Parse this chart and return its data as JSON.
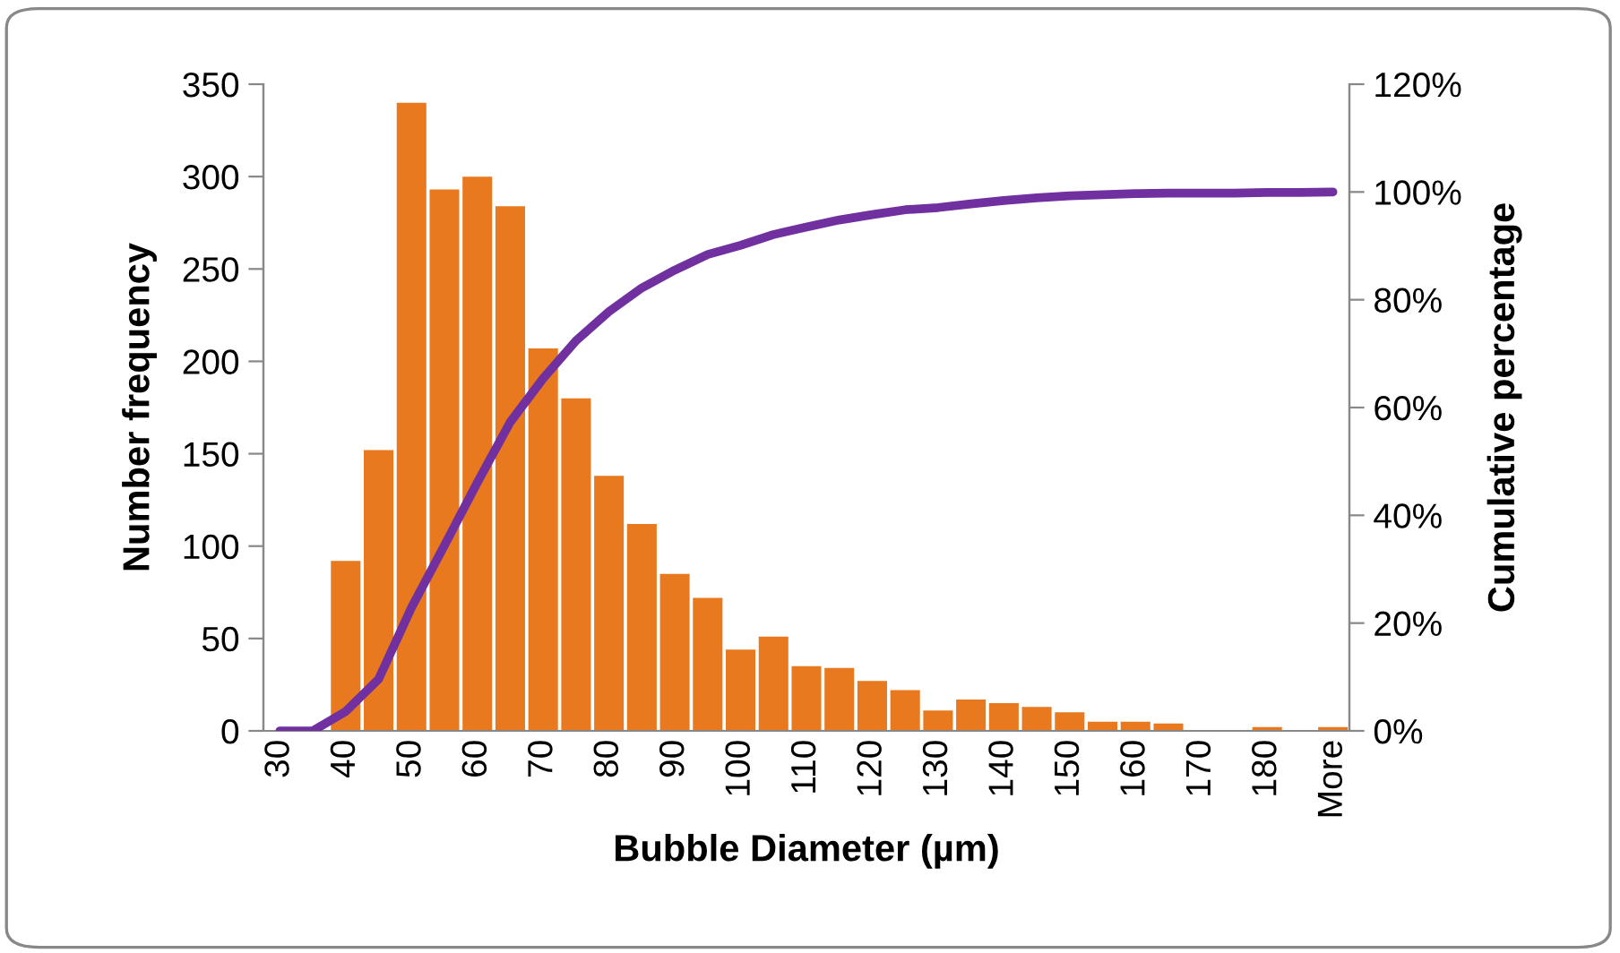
{
  "chart_data": {
    "type": "bar",
    "xlabel": "Bubble Diameter (µm)",
    "ylabel": "Number frequency",
    "y2label": "Cumulative percentage",
    "categories": [
      "30",
      null,
      "40",
      null,
      "50",
      null,
      "60",
      null,
      "70",
      null,
      "80",
      null,
      "90",
      null,
      "100",
      null,
      "110",
      null,
      "120",
      null,
      "130",
      null,
      "140",
      null,
      "150",
      null,
      "160",
      null,
      "170",
      null,
      "180",
      null,
      "More"
    ],
    "series": [
      {
        "type": "bar",
        "color": "#e8791f",
        "values": [
          0,
          0,
          92,
          152,
          340,
          293,
          300,
          284,
          207,
          180,
          138,
          112,
          85,
          72,
          44,
          51,
          35,
          34,
          27,
          22,
          11,
          17,
          15,
          13,
          10,
          5,
          5,
          4,
          0,
          0,
          2,
          0,
          2
        ]
      },
      {
        "type": "line",
        "axis": "y2",
        "color": "#7030a0",
        "values": [
          0,
          0,
          3.6,
          9.6,
          22.9,
          34.4,
          46.1,
          57.3,
          65.4,
          72.4,
          77.8,
          82.2,
          85.5,
          88.4,
          90.1,
          92.1,
          93.5,
          94.8,
          95.8,
          96.7,
          97.1,
          97.8,
          98.4,
          98.9,
          99.3,
          99.5,
          99.7,
          99.8,
          99.8,
          99.8,
          99.9,
          99.9,
          100
        ]
      }
    ],
    "ylim": [
      0,
      350
    ],
    "yticks": [
      0,
      50,
      100,
      150,
      200,
      250,
      300,
      350
    ],
    "y2lim": [
      0,
      120
    ],
    "y2ticks": [
      {
        "value": 0,
        "label": "0%"
      },
      {
        "value": 20,
        "label": "20%"
      },
      {
        "value": 40,
        "label": "40%"
      },
      {
        "value": 60,
        "label": "60%"
      },
      {
        "value": 80,
        "label": "80%"
      },
      {
        "value": 100,
        "label": "100%"
      },
      {
        "value": 120,
        "label": "120%"
      }
    ],
    "grid": false,
    "legend": false,
    "marker": "none",
    "line_style": "solid"
  }
}
